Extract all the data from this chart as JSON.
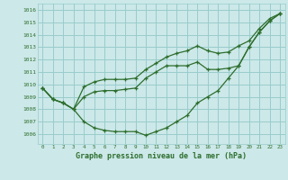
{
  "title": "Graphe pression niveau de la mer (hPa)",
  "bg_color": "#cce8e8",
  "grid_color": "#99cccc",
  "line_color": "#2d6e2d",
  "x_ticks": [
    0,
    1,
    2,
    3,
    4,
    5,
    6,
    7,
    8,
    9,
    10,
    11,
    12,
    13,
    14,
    15,
    16,
    17,
    18,
    19,
    20,
    21,
    22,
    23
  ],
  "ylim": [
    1005.2,
    1016.5
  ],
  "yticks": [
    1006,
    1007,
    1008,
    1009,
    1010,
    1011,
    1012,
    1013,
    1014,
    1015,
    1016
  ],
  "series": {
    "line1": [
      1009.7,
      1008.8,
      1008.5,
      1008.0,
      1007.0,
      1006.5,
      1006.3,
      1006.2,
      1006.2,
      1006.2,
      1005.9,
      1006.2,
      1006.5,
      1007.0,
      1007.5,
      1008.5,
      1009.0,
      1009.5,
      1010.5,
      1011.5,
      1013.0,
      1014.2,
      1015.1,
      1015.7
    ],
    "line2": [
      1009.7,
      1008.8,
      1008.5,
      1008.0,
      1009.0,
      1009.4,
      1009.5,
      1009.5,
      1009.6,
      1009.7,
      1010.5,
      1011.0,
      1011.5,
      1011.5,
      1011.5,
      1011.8,
      1011.2,
      1011.2,
      1011.3,
      1011.5,
      1013.0,
      1014.2,
      1015.1,
      1015.7
    ],
    "line3": [
      1009.7,
      1008.8,
      1008.5,
      1008.0,
      1009.8,
      1010.2,
      1010.4,
      1010.4,
      1010.4,
      1010.5,
      1011.2,
      1011.7,
      1012.2,
      1012.5,
      1012.7,
      1013.1,
      1012.7,
      1012.5,
      1012.6,
      1013.1,
      1013.5,
      1014.5,
      1015.3,
      1015.7
    ]
  }
}
